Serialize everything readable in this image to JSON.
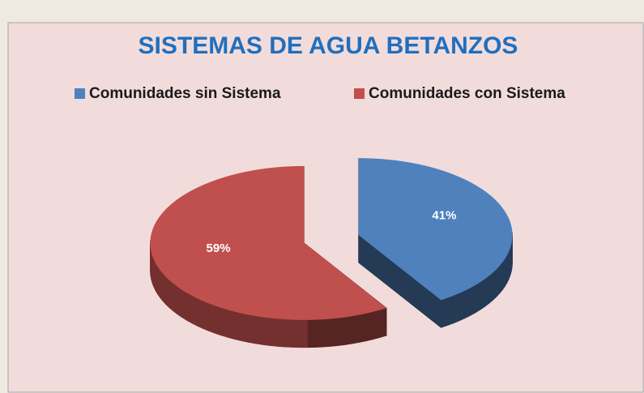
{
  "chart_data": {
    "type": "pie",
    "title": "SISTEMAS DE AGUA BETANZOS",
    "categories": [
      "Comunidades sin Sistema",
      "Comunidades con Sistema"
    ],
    "values": [
      41,
      59
    ],
    "value_labels": [
      "41%",
      "59%"
    ],
    "colors": [
      "#4f81bd",
      "#c0504d"
    ],
    "legend": "top"
  }
}
